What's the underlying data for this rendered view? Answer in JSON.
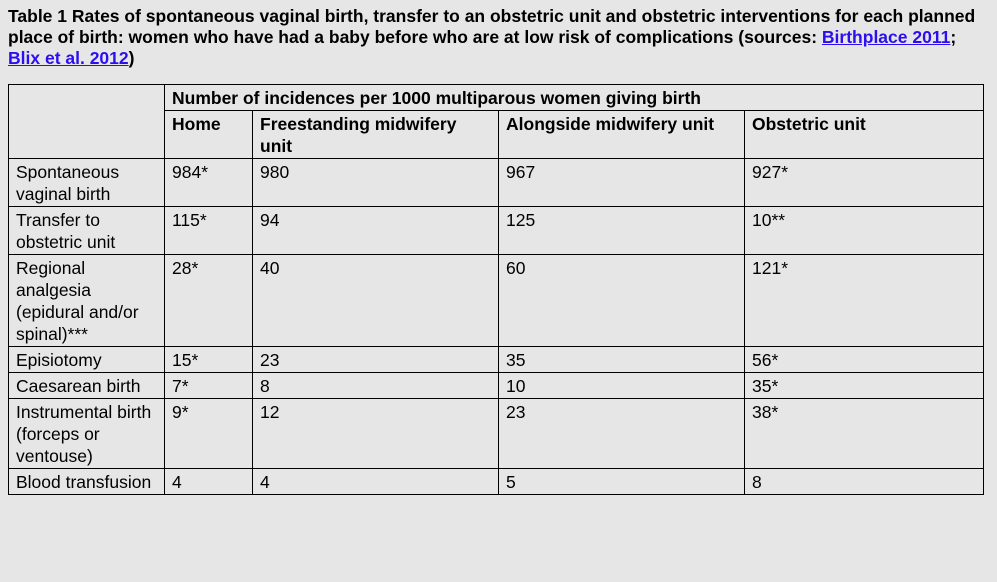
{
  "caption": {
    "prefix": "Table 1 Rates of spontaneous vaginal birth, transfer to an obstetric unit and obstetric interventions for each planned place of birth: women who have had a baby before who are at low risk of complications (sources: ",
    "link1": "Birthplace 2011",
    "sep": "; ",
    "link2": "Blix et al. 2012",
    "suffix": ")"
  },
  "table": {
    "group_header": "Number of incidences per 1000 multiparous women giving birth",
    "columns": [
      "Home",
      "Freestanding midwifery unit",
      "Alongside midwifery unit",
      "Obstetric unit"
    ],
    "rows": [
      {
        "label": "Spontaneous vaginal birth",
        "values": [
          "984*",
          "980",
          "967",
          "927*"
        ]
      },
      {
        "label": "Transfer to obstetric unit",
        "values": [
          "115*",
          "94",
          "125",
          "10**"
        ]
      },
      {
        "label": "Regional analgesia (epidural and/or spinal)***",
        "values": [
          "28*",
          "40",
          "60",
          "121*"
        ]
      },
      {
        "label": "Episiotomy",
        "values": [
          "15*",
          "23",
          "35",
          "56*"
        ]
      },
      {
        "label": "Caesarean birth",
        "values": [
          "7*",
          "8",
          "10",
          "35*"
        ]
      },
      {
        "label": "Instrumental birth (forceps or ventouse)",
        "values": [
          "9*",
          "12",
          "23",
          "38*"
        ]
      },
      {
        "label": "Blood transfusion",
        "values": [
          "4",
          "4",
          "5",
          "8"
        ]
      }
    ]
  }
}
